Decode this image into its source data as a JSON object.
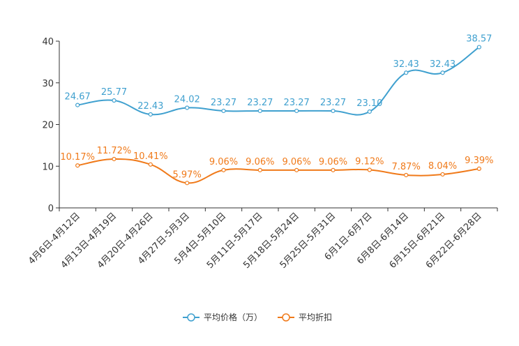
{
  "chart_data": {
    "type": "line",
    "title": "",
    "xlabel": "",
    "ylabel": "",
    "ylim": [
      0,
      40
    ],
    "yticks": [
      "0",
      "10",
      "20",
      "30",
      "40"
    ],
    "grid": false,
    "legend": "bottom-center",
    "categories": [
      "4月6日-4月12日",
      "4月13日-4月19日",
      "4月20日-4月26日",
      "4月27日-5月3日",
      "5月4日-5月10日",
      "5月11日-5月17日",
      "5月18日-5月24日",
      "5月25日-5月31日",
      "6月1日-6月7日",
      "6月8日-6月14日",
      "6月15日-6月21日",
      "6月22日-6月28日"
    ],
    "series": [
      {
        "name": "平均价格（万）",
        "color": "#3fa0cf",
        "values": [
          24.67,
          25.77,
          22.43,
          24.02,
          23.27,
          23.27,
          23.27,
          23.27,
          23.1,
          32.43,
          32.43,
          38.57
        ],
        "labels": [
          "24.67",
          "25.77",
          "22.43",
          "24.02",
          "23.27",
          "23.27",
          "23.27",
          "23.27",
          "23.10",
          "32.43",
          "32.43",
          "38.57"
        ]
      },
      {
        "name": "平均折扣",
        "color": "#f07a1a",
        "values": [
          10.17,
          11.72,
          10.41,
          5.97,
          9.06,
          9.06,
          9.06,
          9.06,
          9.12,
          7.87,
          8.04,
          9.39
        ],
        "labels": [
          "10.17%",
          "11.72%",
          "10.41%",
          "5.97%",
          "9.06%",
          "9.06%",
          "9.06%",
          "9.06%",
          "9.12%",
          "7.87%",
          "8.04%",
          "9.39%"
        ]
      }
    ]
  }
}
